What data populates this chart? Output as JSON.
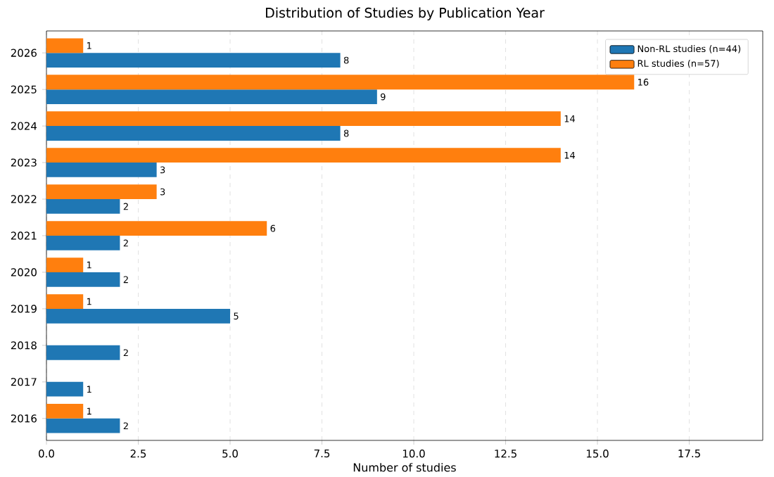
{
  "chart_data": {
    "type": "bar",
    "orientation": "horizontal",
    "title": "Distribution of Studies by Publication Year",
    "xlabel": "Number of studies",
    "categories": [
      "2026",
      "2025",
      "2024",
      "2023",
      "2022",
      "2021",
      "2020",
      "2019",
      "2018",
      "2017",
      "2016"
    ],
    "series": [
      {
        "name": "Non-RL studies (n=44)",
        "color": "#1f77b4",
        "values": [
          8,
          9,
          8,
          3,
          2,
          2,
          2,
          5,
          2,
          1,
          2
        ]
      },
      {
        "name": "RL studies (n=57)",
        "color": "#ff7f0e",
        "values": [
          1,
          16,
          14,
          14,
          3,
          6,
          1,
          1,
          null,
          null,
          1
        ]
      }
    ],
    "xlim": [
      0,
      19.5
    ],
    "xticks": [
      {
        "value": 0,
        "label": "0.0"
      },
      {
        "value": 2.5,
        "label": "2.5"
      },
      {
        "value": 5,
        "label": "5.0"
      },
      {
        "value": 7.5,
        "label": "7.5"
      },
      {
        "value": 10,
        "label": "10.0"
      },
      {
        "value": 12.5,
        "label": "12.5"
      },
      {
        "value": 15,
        "label": "15.0"
      },
      {
        "value": 17.5,
        "label": "17.5"
      }
    ],
    "grid": "x",
    "legend": "top right",
    "data_labels": true
  }
}
